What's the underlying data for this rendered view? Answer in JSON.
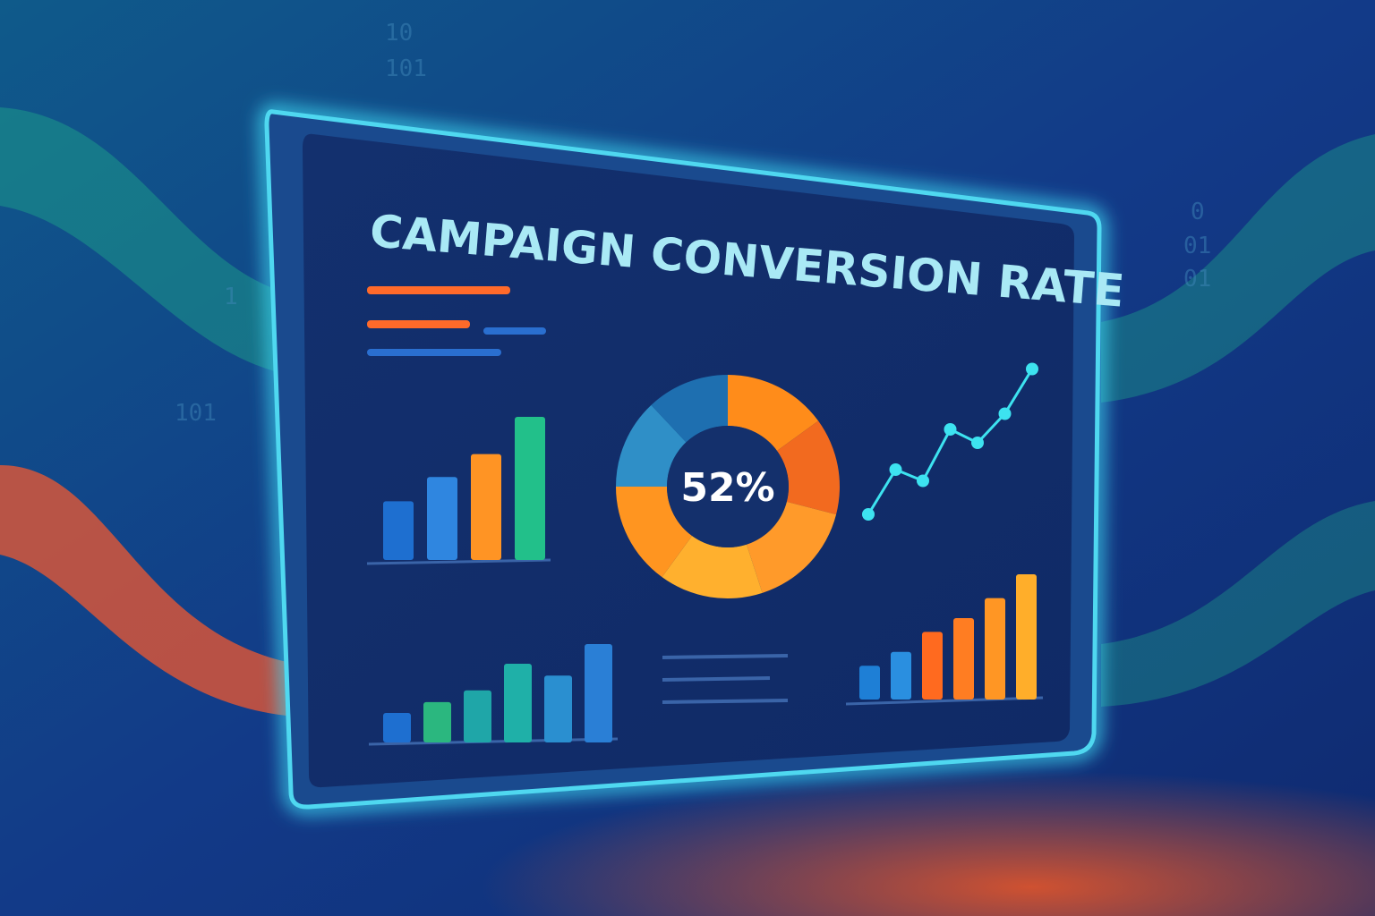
{
  "title": "CAMPAIGN CONVERSION RATE",
  "donut": {
    "label": "52%",
    "segments": [
      {
        "value": 15,
        "color": "#ff8c1a"
      },
      {
        "value": 14,
        "color": "#f26a1f"
      },
      {
        "value": 16,
        "color": "#ff9a2a"
      },
      {
        "value": 15,
        "color": "#ffb02e"
      },
      {
        "value": 15,
        "color": "#ff9520"
      },
      {
        "value": 13,
        "color": "#2f8fc7"
      },
      {
        "value": 12,
        "color": "#1e6fb0"
      }
    ]
  },
  "top_bars": {
    "values": [
      41,
      58,
      74,
      100
    ],
    "colors": [
      "#1e6fd0",
      "#2f86e0",
      "#ff9424",
      "#22c08a"
    ]
  },
  "bottom_left_bars": {
    "values": [
      30,
      41,
      53,
      80,
      68,
      100
    ],
    "colors": [
      "#1e6fd0",
      "#2bb77f",
      "#1fa6a8",
      "#1fb0a8",
      "#2a8fd0",
      "#2a7fd6"
    ]
  },
  "bottom_right_bars": {
    "values": [
      27,
      38,
      54,
      65,
      81,
      100
    ],
    "colors": [
      "#1e7fd6",
      "#2a8fe0",
      "#ff6a1f",
      "#ff7d22",
      "#ff9624",
      "#ffae2a"
    ]
  },
  "line": {
    "values": [
      10,
      30,
      25,
      48,
      42,
      55,
      75
    ],
    "color": "#3de3f0"
  },
  "binary": [
    "10",
    "101",
    "101",
    "1",
    "0",
    "01",
    "01"
  ]
}
